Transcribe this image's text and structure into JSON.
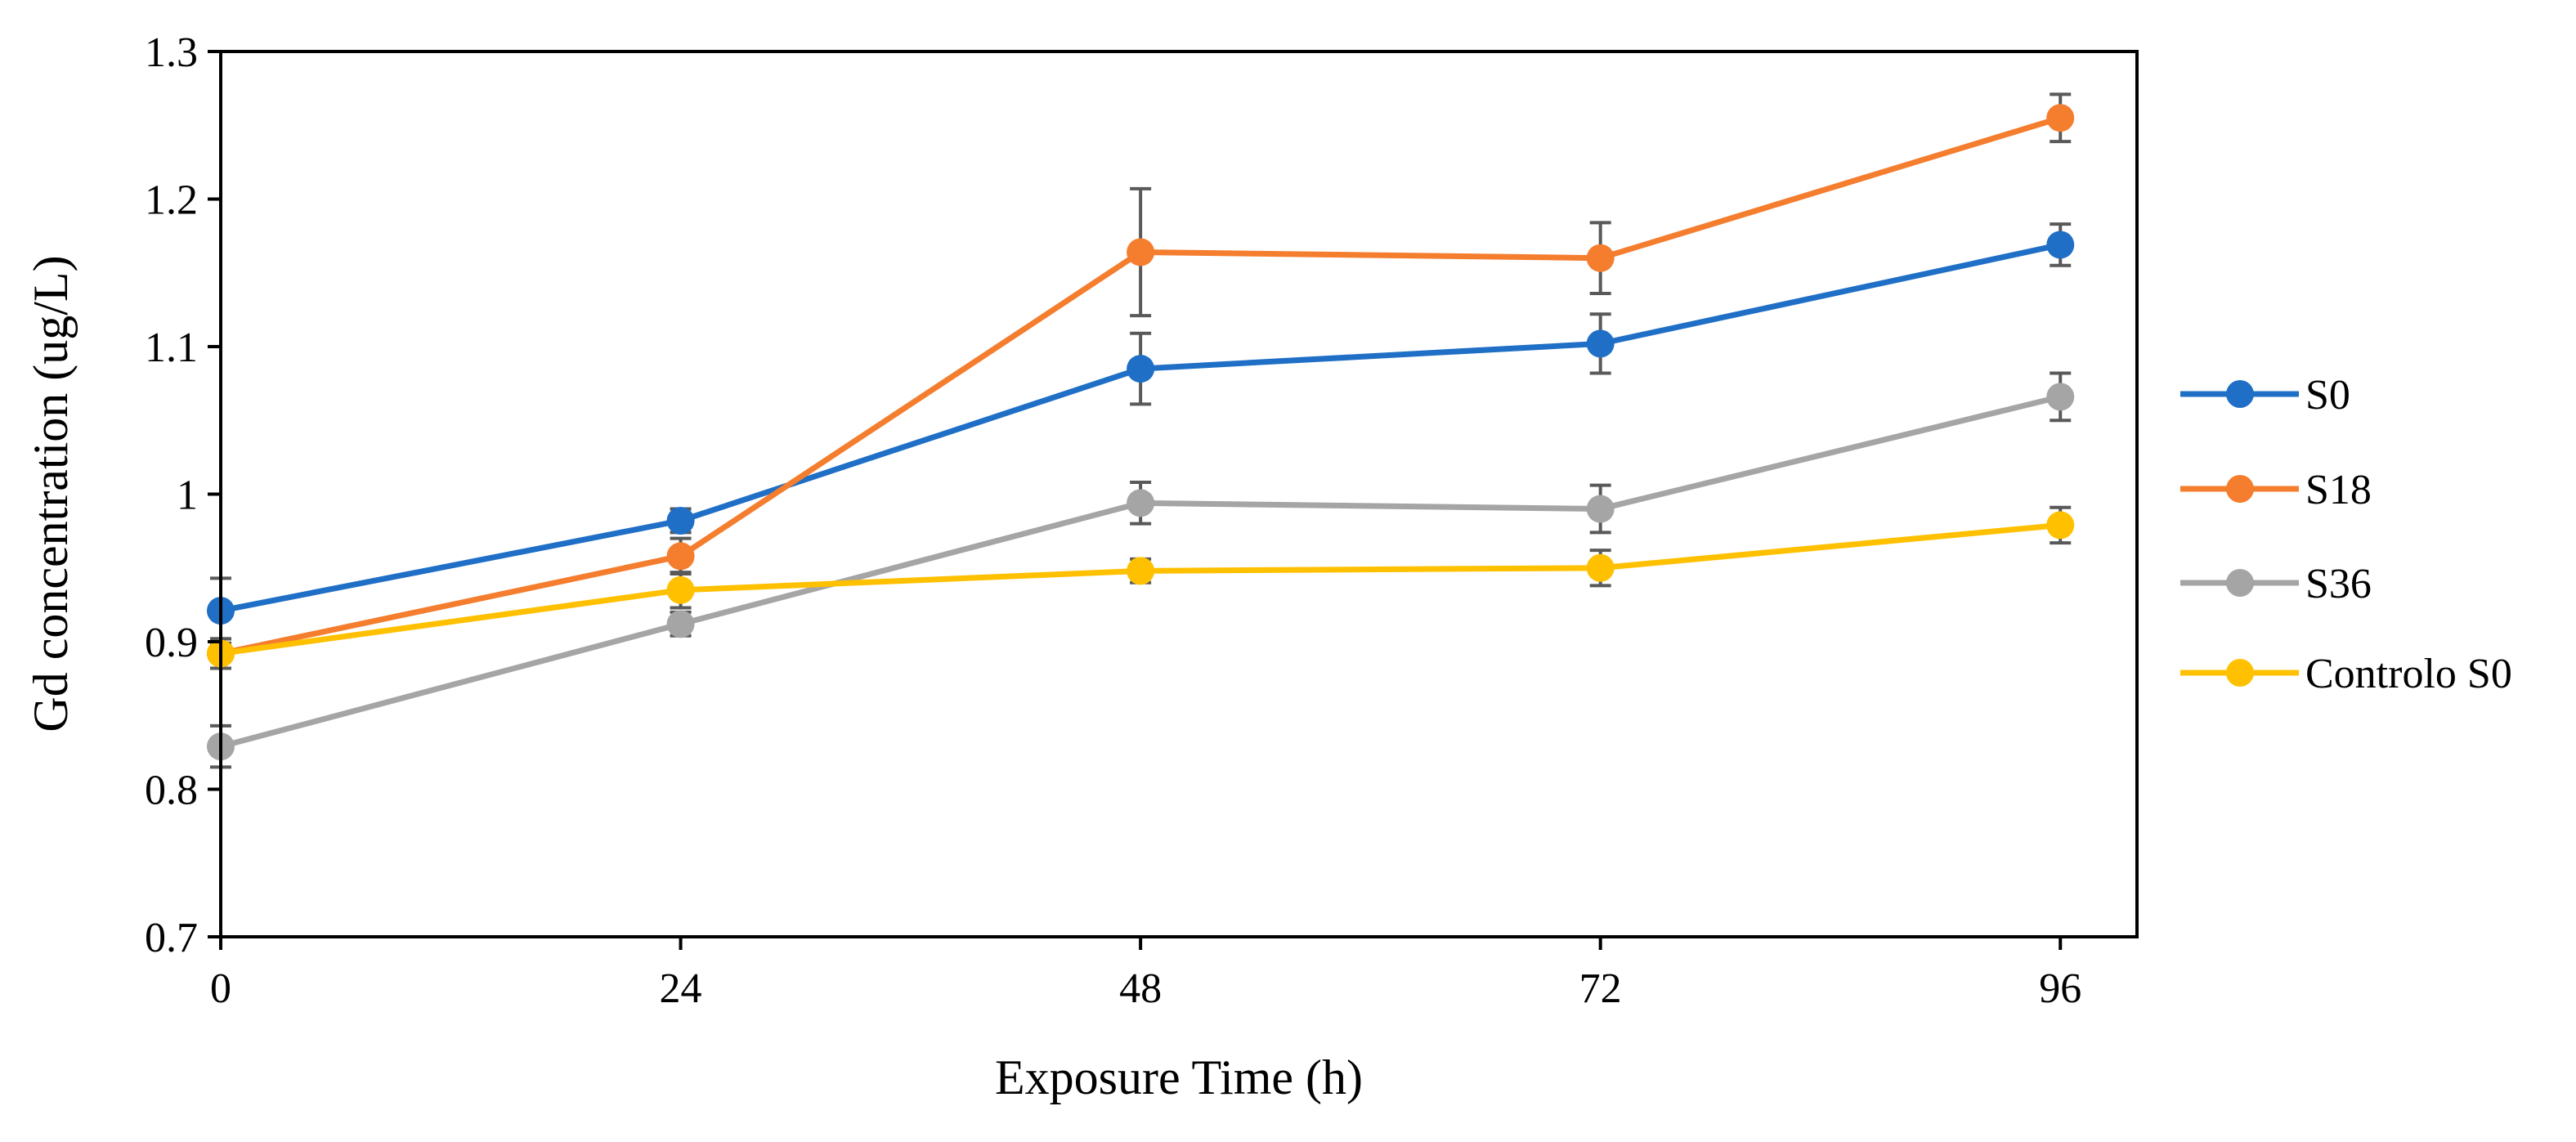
{
  "chart_data": {
    "type": "line",
    "title": "",
    "xlabel": "Exposure Time (h)",
    "ylabel": "Gd concentration (ug/L)",
    "x": [
      0,
      24,
      48,
      72,
      96
    ],
    "x_tick_labels": [
      "0",
      "24",
      "48",
      "72",
      "96"
    ],
    "xlim": [
      0,
      100
    ],
    "ylim": [
      0.7,
      1.3
    ],
    "y_ticks": [
      0.7,
      0.8,
      0.9,
      1.0,
      1.1,
      1.2,
      1.3
    ],
    "y_tick_labels": [
      "0.7",
      "0.8",
      "0.9",
      "1",
      "1.1",
      "1.2",
      "1.3"
    ],
    "grid": false,
    "legend_position": "right",
    "error_bar_color": "#595959",
    "series": [
      {
        "name": "S0",
        "color": "#1f6fc6",
        "values": [
          0.921,
          0.982,
          1.085,
          1.102,
          1.169
        ],
        "errors": [
          0.022,
          0.008,
          0.024,
          0.02,
          0.014
        ]
      },
      {
        "name": "S18",
        "color": "#f47d2e",
        "values": [
          0.892,
          0.958,
          1.164,
          1.16,
          1.255
        ],
        "errors": [
          0.01,
          0.012,
          0.043,
          0.024,
          0.016
        ]
      },
      {
        "name": "S36",
        "color": "#a5a5a5",
        "values": [
          0.829,
          0.912,
          0.994,
          0.99,
          1.066
        ],
        "errors": [
          0.014,
          0.008,
          0.014,
          0.016,
          0.016
        ]
      },
      {
        "name": "Controlo S0",
        "color": "#ffc000",
        "values": [
          0.892,
          0.935,
          0.948,
          0.95,
          0.979
        ],
        "errors": [
          0.01,
          0.012,
          0.008,
          0.012,
          0.012
        ]
      }
    ]
  }
}
